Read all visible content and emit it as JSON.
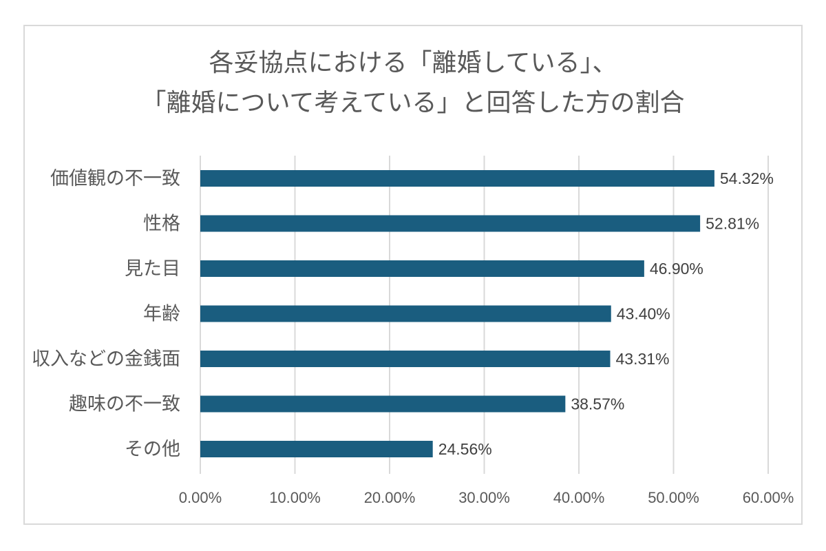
{
  "chart_data": {
    "type": "bar",
    "orientation": "horizontal",
    "title": [
      "各妥協点における「離婚している」、",
      "「離婚について考えている」と回答した方の割合"
    ],
    "categories": [
      "価値観の不一致",
      "性格",
      "見た目",
      "年齢",
      "収入などの金銭面",
      "趣味の不一致",
      "その他"
    ],
    "values": [
      54.32,
      52.81,
      46.9,
      43.4,
      43.31,
      38.57,
      24.56
    ],
    "value_labels": [
      "54.32%",
      "52.81%",
      "46.90%",
      "43.40%",
      "43.31%",
      "38.57%",
      "24.56%"
    ],
    "xlim": [
      0,
      60
    ],
    "x_ticks": [
      0,
      10,
      20,
      30,
      40,
      50,
      60
    ],
    "x_tick_labels": [
      "0.00%",
      "10.00%",
      "20.00%",
      "30.00%",
      "40.00%",
      "50.00%",
      "60.00%"
    ],
    "grid": true,
    "legend": "none",
    "bar_color": "#1a5d7f",
    "grid_color": "#d9d9d9"
  }
}
